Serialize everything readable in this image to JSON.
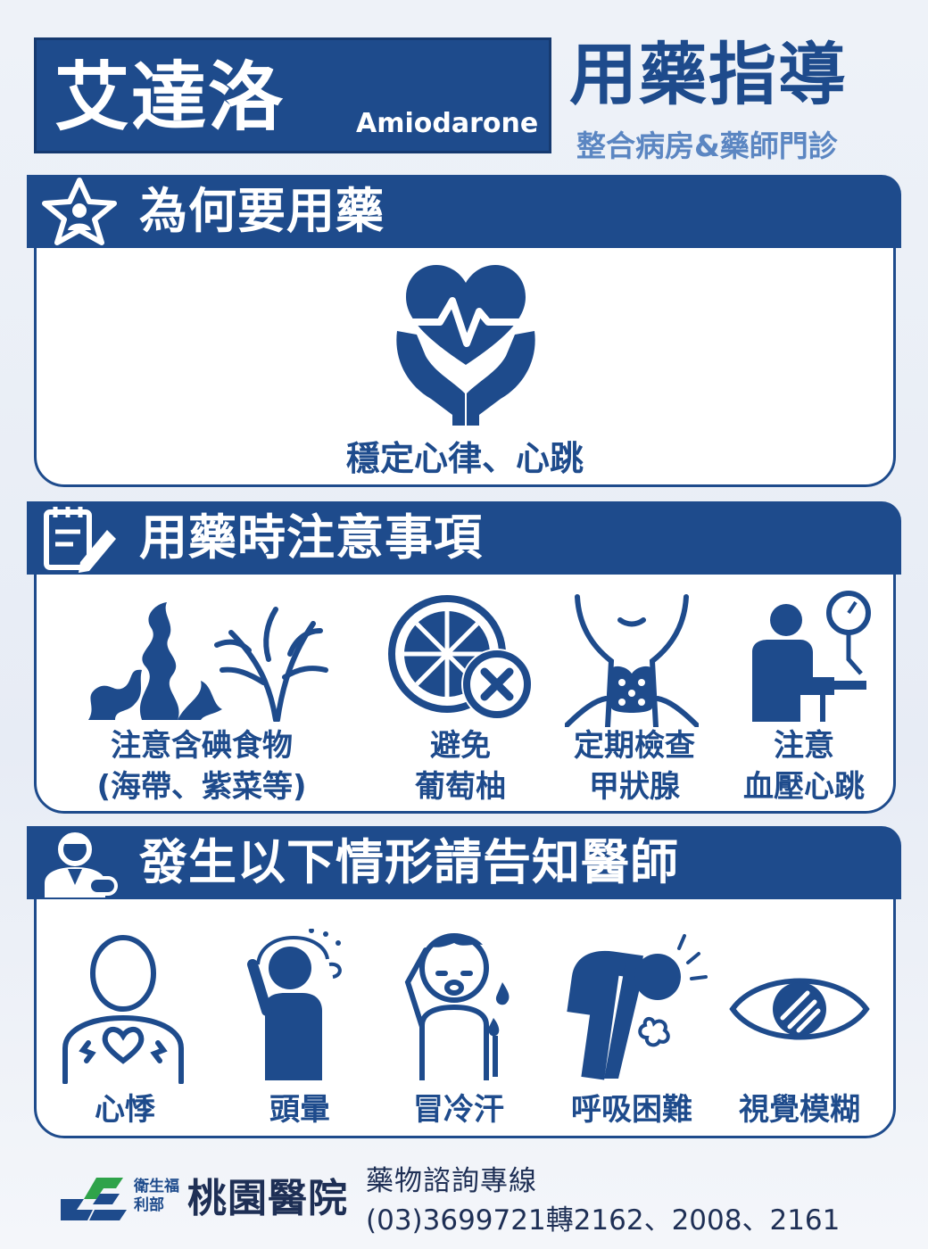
{
  "header": {
    "drug_name_zh": "艾達洛",
    "drug_name_en": "Amiodarone",
    "guide_title": "用藥指導",
    "guide_subtitle": "整合病房&藥師門診"
  },
  "sections": {
    "why": {
      "title": "為何要用藥",
      "icon": "star-person-icon",
      "caption": "穩定心律、心跳",
      "illustration": "heart-in-hands-icon"
    },
    "precautions": {
      "title": "用藥時注意事項",
      "icon": "notepad-pencil-icon",
      "items": [
        {
          "line1": "注意含碘食物",
          "line2": "(海帶、紫菜等)",
          "icon": "seaweed-icon"
        },
        {
          "line1": "避免",
          "line2": "葡萄柚",
          "icon": "grapefruit-forbidden-icon"
        },
        {
          "line1": "定期檢查",
          "line2": "甲狀腺",
          "icon": "thyroid-icon"
        },
        {
          "line1": "注意",
          "line2": "血壓心跳",
          "icon": "blood-pressure-icon"
        }
      ]
    },
    "tell_doctor": {
      "title": "發生以下情形請告知醫師",
      "icon": "doctor-icon",
      "items": [
        {
          "label": "心悸",
          "icon": "palpitation-icon"
        },
        {
          "label": "頭暈",
          "icon": "dizziness-icon"
        },
        {
          "label": "冒冷汗",
          "icon": "cold-sweat-icon"
        },
        {
          "label": "呼吸困難",
          "icon": "breathing-difficulty-icon"
        },
        {
          "label": "視覺模糊",
          "icon": "blurred-vision-icon"
        }
      ]
    }
  },
  "footer": {
    "ministry": "衛生福利部",
    "hospital": "桃園醫院",
    "hotline_label": "藥物諮詢專線",
    "hotline_number": "(03)3699721轉2162、2008、2161"
  },
  "colors": {
    "primary": "#1e4b8c",
    "accent_light": "#5b86c2",
    "logo_green": "#2fa34a"
  }
}
